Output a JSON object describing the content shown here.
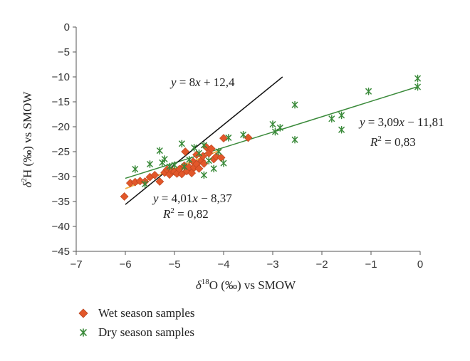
{
  "chart_data": {
    "type": "scatter",
    "xlabel_main": "δ",
    "xlabel_sup": "18",
    "xlabel_rest": "O (‰) vs SMOW",
    "ylabel_main": "δ",
    "ylabel_sup": "2",
    "ylabel_rest": "H (‰) vs SMOW",
    "xlim": [
      -7,
      0
    ],
    "ylim": [
      -45,
      0
    ],
    "x_ticks": [
      -7,
      -6,
      -5,
      -4,
      -3,
      -2,
      -1,
      0
    ],
    "y_ticks": [
      0,
      -5,
      -10,
      -15,
      -20,
      -25,
      -30,
      -35,
      -40,
      -45
    ],
    "x_tick_labels": [
      "−7",
      "−6",
      "−5",
      "−4",
      "−3",
      "−2",
      "−1",
      "0"
    ],
    "y_tick_labels": [
      "0",
      "−5",
      "−10",
      "−15",
      "−20",
      "−25",
      "−30",
      "−35",
      "−40",
      "−45"
    ],
    "series": [
      {
        "name": "Wet season samples",
        "marker": "diamond",
        "color": "#e2572a",
        "points": [
          [
            -6.02,
            -34.0
          ],
          [
            -5.9,
            -31.3
          ],
          [
            -5.8,
            -31.1
          ],
          [
            -5.7,
            -30.9
          ],
          [
            -5.6,
            -31.0
          ],
          [
            -5.5,
            -30.1
          ],
          [
            -5.4,
            -29.7
          ],
          [
            -5.3,
            -31.0
          ],
          [
            -5.2,
            -29.2
          ],
          [
            -5.15,
            -28.6
          ],
          [
            -5.1,
            -29.6
          ],
          [
            -5.05,
            -28.8
          ],
          [
            -5.0,
            -29.0
          ],
          [
            -4.95,
            -29.4
          ],
          [
            -4.9,
            -28.5
          ],
          [
            -4.85,
            -29.5
          ],
          [
            -4.8,
            -27.8
          ],
          [
            -4.78,
            -25.0
          ],
          [
            -4.75,
            -28.9
          ],
          [
            -4.7,
            -28.1
          ],
          [
            -4.65,
            -29.3
          ],
          [
            -4.62,
            -27.0
          ],
          [
            -4.6,
            -28.2
          ],
          [
            -4.55,
            -25.6
          ],
          [
            -4.55,
            -27.5
          ],
          [
            -4.5,
            -28.4
          ],
          [
            -4.45,
            -26.8
          ],
          [
            -4.42,
            -25.9
          ],
          [
            -4.4,
            -27.4
          ],
          [
            -4.35,
            -24.1
          ],
          [
            -4.3,
            -25.3
          ],
          [
            -4.25,
            -24.4
          ],
          [
            -4.2,
            -26.5
          ],
          [
            -4.15,
            -26.0
          ],
          [
            -4.05,
            -26.2
          ],
          [
            -4.0,
            -22.3
          ],
          [
            -3.5,
            -22.2
          ]
        ]
      },
      {
        "name": "Dry season samples",
        "marker": "asterisk",
        "color": "#3a8a3a",
        "points": [
          [
            -5.8,
            -28.5
          ],
          [
            -5.6,
            -31.5
          ],
          [
            -5.5,
            -27.5
          ],
          [
            -5.3,
            -24.8
          ],
          [
            -5.25,
            -27.2
          ],
          [
            -5.2,
            -26.5
          ],
          [
            -5.1,
            -28.0
          ],
          [
            -5.0,
            -27.7
          ],
          [
            -4.85,
            -23.4
          ],
          [
            -4.8,
            -28.0
          ],
          [
            -4.7,
            -26.6
          ],
          [
            -4.6,
            -24.2
          ],
          [
            -4.5,
            -25.3
          ],
          [
            -4.4,
            -23.7
          ],
          [
            -4.4,
            -29.7
          ],
          [
            -4.3,
            -26.8
          ],
          [
            -4.2,
            -28.4
          ],
          [
            -4.1,
            -25.0
          ],
          [
            -4.0,
            -27.3
          ],
          [
            -3.9,
            -22.2
          ],
          [
            -3.6,
            -21.6
          ],
          [
            -3.0,
            -19.5
          ],
          [
            -2.95,
            -21.0
          ],
          [
            -2.85,
            -20.2
          ],
          [
            -2.55,
            -15.6
          ],
          [
            -2.55,
            -22.6
          ],
          [
            -1.8,
            -18.4
          ],
          [
            -1.6,
            -17.7
          ],
          [
            -1.6,
            -20.6
          ],
          [
            -1.05,
            -12.9
          ],
          [
            -0.05,
            -12.0
          ],
          [
            -0.05,
            -10.3
          ]
        ]
      }
    ],
    "trendlines": [
      {
        "label": "dry-season-fit",
        "slope": 3.09,
        "intercept": -11.81,
        "x_range": [
          -6.0,
          -0.05
        ],
        "color": "#3a8a3a"
      },
      {
        "label": "wet-season-fit",
        "slope": 4.01,
        "intercept": -8.37,
        "x_range": [
          -6.0,
          -4.05
        ],
        "color": "#f0b24a"
      },
      {
        "label": "gmwl",
        "slope": 8,
        "intercept": 12.4,
        "x_range": [
          -6.0,
          -2.8
        ],
        "color": "#111111"
      }
    ],
    "annotations": {
      "gmwl_eq": {
        "y": "y",
        "eq": " = 8",
        "x": "x",
        "rest": " + 12,4"
      },
      "dry_eq": {
        "y": "y",
        "eq": " = 3,09",
        "x": "x",
        "rest": " − 11,81",
        "r": "R",
        "r_sup": "2",
        "r_rest": " = 0,83"
      },
      "wet_eq": {
        "y": "y",
        "eq": " = 4,01",
        "x": "x",
        "rest": " − 8,37",
        "r": "R",
        "r_sup": "2",
        "r_rest": " = 0,82"
      }
    },
    "legend": {
      "position": "bottom-left",
      "items": [
        {
          "label": "Wet season samples",
          "marker": "diamond",
          "color": "#e2572a"
        },
        {
          "label": "Dry season samples",
          "marker": "asterisk",
          "color": "#3a8a3a"
        }
      ]
    }
  }
}
